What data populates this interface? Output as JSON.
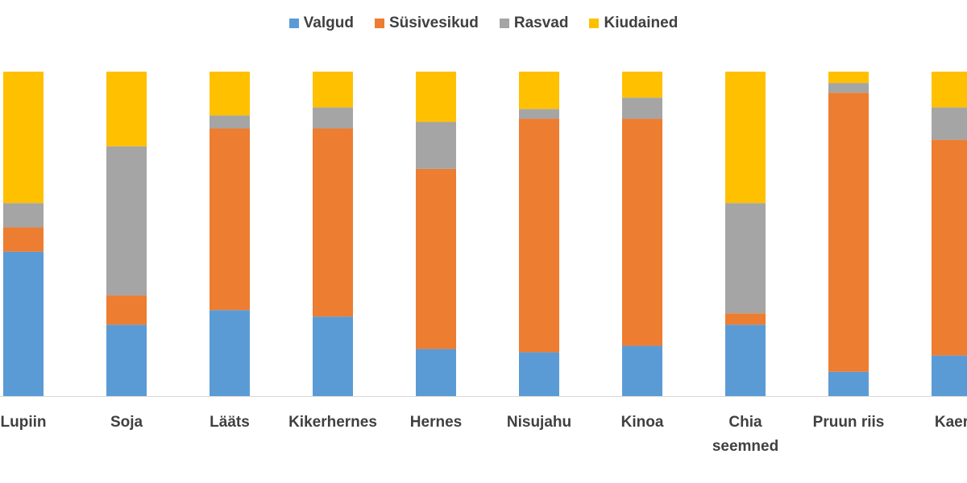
{
  "chart_data": {
    "type": "bar",
    "stacked": true,
    "normalized_percent": true,
    "categories": [
      "Lupiin",
      "Soja",
      "Lääts",
      "Kikerhernes",
      "Hernes",
      "Nisujahu",
      "Kinoa",
      "Chia seemned",
      "Pruun riis",
      "Kaer"
    ],
    "series": [
      {
        "name": "Valgud",
        "color": "#5B9BD5",
        "values": [
          44.5,
          22,
          26.5,
          24.5,
          14.5,
          13.5,
          15.5,
          22,
          7.5,
          12.5
        ]
      },
      {
        "name": "Süsivesikud",
        "color": "#ED7D31",
        "values": [
          7.5,
          9,
          56,
          58,
          55.5,
          72,
          70,
          3.5,
          86,
          66.5
        ]
      },
      {
        "name": "Rasvad",
        "color": "#A5A5A5",
        "values": [
          7.5,
          46,
          4,
          6.5,
          14.5,
          3,
          6.5,
          34,
          3,
          10
        ]
      },
      {
        "name": "Kiudained",
        "color": "#FFC000",
        "values": [
          40.5,
          23,
          13.5,
          11,
          15.5,
          11.5,
          8,
          40.5,
          3.5,
          11
        ]
      }
    ],
    "ylim": [
      0,
      100
    ],
    "legend": "top",
    "grid": false
  }
}
